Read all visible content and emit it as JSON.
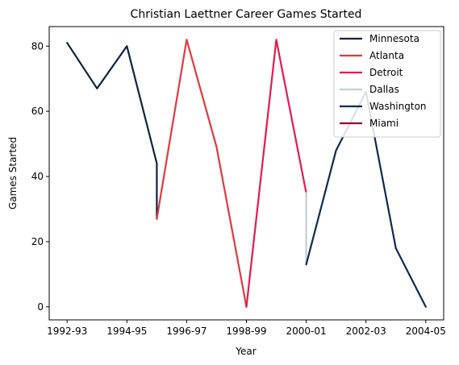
{
  "chart_data": {
    "type": "line",
    "title": "Christian Laettner Career Games Started",
    "xlabel": "Year",
    "ylabel": "Games Started",
    "x_tick_labels": [
      "1992-93",
      "1994-95",
      "1996-97",
      "1998-99",
      "2000-01",
      "2002-03",
      "2004-05"
    ],
    "x_tick_positions": [
      0,
      2,
      4,
      6,
      8,
      10,
      12
    ],
    "xlim": [
      -0.6,
      12.6
    ],
    "y_ticks": [
      0,
      20,
      40,
      60,
      80
    ],
    "ylim": [
      -4,
      86
    ],
    "grid": false,
    "legend_placement": "top-right",
    "series": [
      {
        "name": "Minnesota",
        "color": "#0c2340",
        "x": [
          0,
          1,
          2,
          3,
          3
        ],
        "y": [
          81,
          67,
          80,
          44,
          27
        ]
      },
      {
        "name": "Atlanta",
        "color": "#e03a3e",
        "x": [
          3,
          4,
          5,
          6
        ],
        "y": [
          27,
          82,
          49,
          0
        ]
      },
      {
        "name": "Detroit",
        "color": "#e31b4d",
        "x": [
          6,
          7,
          8
        ],
        "y": [
          0,
          82,
          35
        ]
      },
      {
        "name": "Dallas",
        "color": "#c4ced4",
        "x": [
          8,
          8
        ],
        "y": [
          35,
          13
        ]
      },
      {
        "name": "Washington",
        "color": "#0d2a55",
        "x": [
          8,
          9,
          10,
          11,
          12
        ],
        "y": [
          13,
          48,
          66,
          18,
          0
        ]
      },
      {
        "name": "Miami",
        "color": "#98002e",
        "x": [],
        "y": []
      }
    ]
  }
}
